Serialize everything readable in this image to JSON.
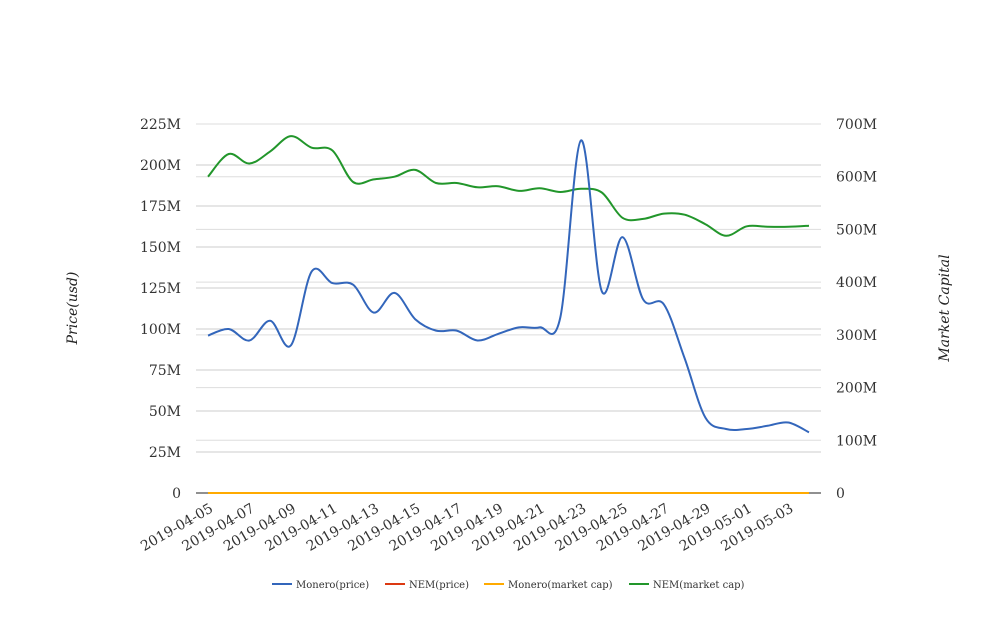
{
  "chart_data": {
    "type": "line",
    "title": "",
    "xlabel": "",
    "ylabel_left": "Price(usd)",
    "ylabel_right": "Market Capital",
    "ylim_left": [
      0,
      225000000
    ],
    "ylim_right": [
      0,
      700000000
    ],
    "yticks_left": [
      "0",
      "25M",
      "50M",
      "75M",
      "100M",
      "125M",
      "150M",
      "175M",
      "200M",
      "225M"
    ],
    "yticks_right": [
      "0",
      "100M",
      "200M",
      "300M",
      "400M",
      "500M",
      "600M",
      "700M"
    ],
    "x_tick_labels": [
      "2019-04-05",
      "2019-04-07",
      "2019-04-09",
      "2019-04-11",
      "2019-04-13",
      "2019-04-15",
      "2019-04-17",
      "2019-04-19",
      "2019-04-21",
      "2019-04-23",
      "2019-04-25",
      "2019-04-27",
      "2019-04-29",
      "2019-05-01",
      "2019-05-03"
    ],
    "x": [
      "2019-04-05",
      "2019-04-06",
      "2019-04-07",
      "2019-04-08",
      "2019-04-09",
      "2019-04-10",
      "2019-04-11",
      "2019-04-12",
      "2019-04-13",
      "2019-04-14",
      "2019-04-15",
      "2019-04-16",
      "2019-04-17",
      "2019-04-18",
      "2019-04-19",
      "2019-04-20",
      "2019-04-21",
      "2019-04-22",
      "2019-04-23",
      "2019-04-24",
      "2019-04-25",
      "2019-04-26",
      "2019-04-27",
      "2019-04-28",
      "2019-04-29",
      "2019-04-30",
      "2019-05-01",
      "2019-05-02",
      "2019-05-03",
      "2019-05-04"
    ],
    "grid": true,
    "legend_position": "bottom-center",
    "series": [
      {
        "name": "Monero(price)",
        "axis": "left",
        "color": "#3366bb",
        "values": [
          96000000,
          100000000,
          93000000,
          105000000,
          90000000,
          135000000,
          128000000,
          127000000,
          110000000,
          122000000,
          106000000,
          99000000,
          99000000,
          93000000,
          97000000,
          101000000,
          101000000,
          107000000,
          215000000,
          123000000,
          156000000,
          118000000,
          115000000,
          82000000,
          46000000,
          39000000,
          39000000,
          41000000,
          43000000,
          37000000
        ]
      },
      {
        "name": "NEM(price)",
        "axis": "left",
        "color": "#dc3912",
        "values": [
          0,
          0,
          0,
          0,
          0,
          0,
          0,
          0,
          0,
          0,
          0,
          0,
          0,
          0,
          0,
          0,
          0,
          0,
          0,
          0,
          0,
          0,
          0,
          0,
          0,
          0,
          0,
          0,
          0,
          0
        ]
      },
      {
        "name": "Monero(market cap)",
        "axis": "right",
        "color": "#ffaa00",
        "values": [
          0,
          0,
          0,
          0,
          0,
          0,
          0,
          0,
          0,
          0,
          0,
          0,
          0,
          0,
          0,
          0,
          0,
          0,
          0,
          0,
          0,
          0,
          0,
          0,
          0,
          0,
          0,
          0,
          0,
          0
        ]
      },
      {
        "name": "NEM(market cap)",
        "axis": "right",
        "color": "#22962b",
        "values": [
          600000000,
          643000000,
          625000000,
          648000000,
          677000000,
          655000000,
          650000000,
          590000000,
          595000000,
          600000000,
          613000000,
          588000000,
          588000000,
          580000000,
          582000000,
          573000000,
          578000000,
          571000000,
          577000000,
          570000000,
          522000000,
          520000000,
          530000000,
          528000000,
          510000000,
          488000000,
          506000000,
          505000000,
          505000000,
          507000000
        ]
      }
    ]
  }
}
